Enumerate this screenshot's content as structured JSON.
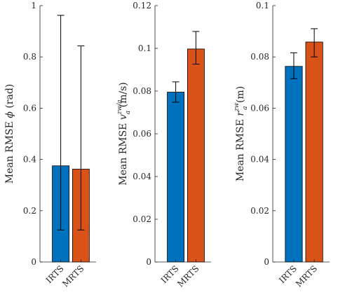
{
  "chart_data": [
    {
      "type": "bar",
      "categories": [
        "IRTS",
        "MRTS"
      ],
      "values": [
        0.375,
        0.362
      ],
      "error_low": [
        0.125,
        0.125
      ],
      "error_high": [
        0.962,
        0.843
      ],
      "ylim": [
        0,
        1
      ],
      "yticks": [
        0,
        0.2,
        0.4,
        0.6,
        0.8,
        1
      ],
      "ytick_labels": [
        "0",
        "0.2",
        "0.4",
        "0.6",
        "0.8",
        "1"
      ],
      "ylabel": {
        "pre": "Mean RMSE ",
        "sym": "ϕ",
        "sub": "",
        "sup": "",
        "post": " (rad)"
      }
    },
    {
      "type": "bar",
      "categories": [
        "IRTS",
        "MRTS"
      ],
      "values": [
        0.0795,
        0.0997
      ],
      "error_low": [
        0.0748,
        0.0926
      ],
      "error_high": [
        0.0843,
        0.1079
      ],
      "ylim": [
        0,
        0.12
      ],
      "yticks": [
        0,
        0.02,
        0.04,
        0.06,
        0.08,
        0.1,
        0.12
      ],
      "ytick_labels": [
        "0",
        "0.02",
        "0.04",
        "0.06",
        "0.08",
        "0.1",
        "0.12"
      ],
      "ylabel": {
        "pre": "Mean RMSE ",
        "sym": "v",
        "sub": "a",
        "sup": "zw/a",
        "post": " (m/s)"
      }
    },
    {
      "type": "bar",
      "categories": [
        "IRTS",
        "MRTS"
      ],
      "values": [
        0.0763,
        0.0858
      ],
      "error_low": [
        0.0715,
        0.08
      ],
      "error_high": [
        0.0816,
        0.091
      ],
      "ylim": [
        0,
        0.1
      ],
      "yticks": [
        0,
        0.02,
        0.04,
        0.06,
        0.08,
        0.1
      ],
      "ytick_labels": [
        "0",
        "0.02",
        "0.04",
        "0.06",
        "0.08",
        "0.1"
      ],
      "ylabel": {
        "pre": "Mean RMSE ",
        "sym": "r",
        "sub": "a",
        "sup": "zw",
        "post": " (m)"
      }
    }
  ],
  "colors": {
    "IRTS": "#0072BD",
    "MRTS": "#D95319"
  }
}
